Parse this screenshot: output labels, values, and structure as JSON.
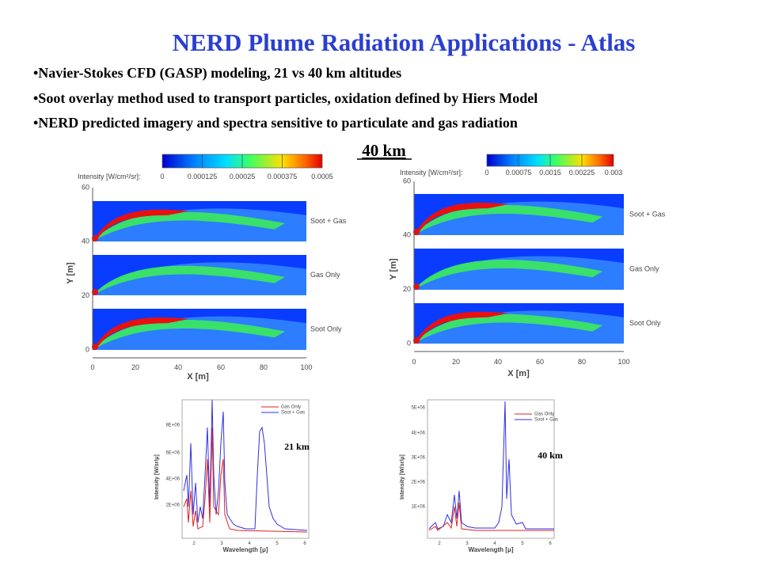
{
  "title": "NERD Plume Radiation Applications - Atlas",
  "bullets": [
    "•Navier-Stokes CFD (GASP) modeling, 21 vs 40 km altitudes",
    "•Soot overlay method used to transport particles, oxidation defined by Hiers Model",
    "•NERD predicted imagery and spectra sensitive to particulate and gas radiation"
  ],
  "center_label": "40 km",
  "panels": [
    {
      "colorbar_label": "Intensity [W/cm²/sr]:",
      "colorbar_ticks": [
        "0",
        "0.000125",
        "0.00025",
        "0.000375",
        "0.0005"
      ],
      "y_label": "Y [m]",
      "x_label": "X [m]",
      "y_ticks": [
        "60",
        "40",
        "20",
        "0"
      ],
      "x_ticks": [
        "0",
        "20",
        "40",
        "60",
        "80",
        "100"
      ],
      "strip_labels": [
        "Soot + Gas",
        "Gas Only",
        "Soot Only"
      ]
    },
    {
      "colorbar_label": "Intensity [W/cm²/sr]:",
      "colorbar_ticks": [
        "0",
        "0.00075",
        "0.0015",
        "0.00225",
        "0.003"
      ],
      "y_label": "Y [m]",
      "x_label": "X [m]",
      "y_ticks": [
        "60",
        "40",
        "20",
        "0"
      ],
      "x_ticks": [
        "0",
        "20",
        "40",
        "60",
        "80",
        "100"
      ],
      "strip_labels": [
        "Soot + Gas",
        "Gas Only",
        "Soot Only"
      ]
    }
  ],
  "spectra": [
    {
      "legend": [
        "Gas Only",
        "Soot + Gas"
      ],
      "y_label": "Intensity [W/sr/μ]",
      "x_label": "Wavelength [μ]",
      "y_ticks": [
        "8E+06",
        "6E+06",
        "4E+06",
        "2E+06"
      ],
      "x_ticks": [
        "2",
        "3",
        "4",
        "5",
        "6"
      ],
      "annotation": "21 km"
    },
    {
      "legend": [
        "Gas Only",
        "Soot + Gas"
      ],
      "y_label": "Intensity [W/sr/μ]",
      "x_label": "Wavelength [μ]",
      "y_ticks": [
        "5E+06",
        "4E+06",
        "3E+06",
        "2E+06",
        "1E+06"
      ],
      "x_ticks": [
        "2",
        "3",
        "4",
        "5",
        "6"
      ],
      "annotation": "40 km"
    }
  ]
}
